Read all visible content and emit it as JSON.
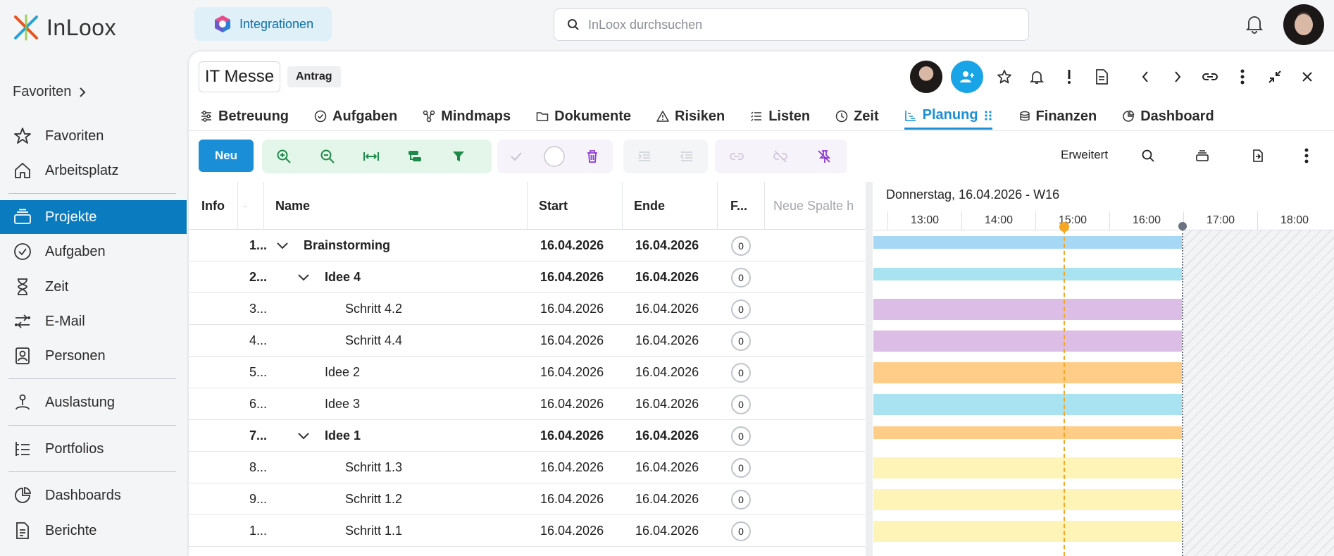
{
  "app": {
    "logo_text": "InLoox"
  },
  "sidebar": {
    "favorites_header": "Favoriten",
    "items": [
      {
        "label": "Favoriten",
        "icon": "star-icon"
      },
      {
        "label": "Arbeitsplatz",
        "icon": "home-icon"
      },
      {
        "label": "Projekte",
        "icon": "projects-icon"
      },
      {
        "label": "Aufgaben",
        "icon": "check-circle-icon"
      },
      {
        "label": "Zeit",
        "icon": "hourglass-icon"
      },
      {
        "label": "E-Mail",
        "icon": "email-icon"
      },
      {
        "label": "Personen",
        "icon": "contacts-icon"
      },
      {
        "label": "Auslastung",
        "icon": "workload-icon"
      },
      {
        "label": "Portfolios",
        "icon": "portfolio-icon"
      },
      {
        "label": "Dashboards",
        "icon": "pie-icon"
      },
      {
        "label": "Berichte",
        "icon": "report-icon"
      }
    ]
  },
  "topbar": {
    "integrations_label": "Integrationen",
    "search_placeholder": "InLoox durchsuchen"
  },
  "project": {
    "title": "IT Messe",
    "status": "Antrag"
  },
  "tabs": [
    {
      "label": "Betreuung"
    },
    {
      "label": "Aufgaben"
    },
    {
      "label": "Mindmaps"
    },
    {
      "label": "Dokumente"
    },
    {
      "label": "Risiken"
    },
    {
      "label": "Listen"
    },
    {
      "label": "Zeit"
    },
    {
      "label": "Planung"
    },
    {
      "label": "Finanzen"
    },
    {
      "label": "Dashboard"
    }
  ],
  "toolbar": {
    "new_label": "Neu",
    "advanced_label": "Erweitert"
  },
  "grid": {
    "columns": {
      "info": "Info",
      "num": "·",
      "name": "Name",
      "start": "Start",
      "end": "Ende",
      "f": "F...",
      "new_col": "Neue Spalte h"
    },
    "rows": [
      {
        "num": "1...",
        "name": "Brainstorming",
        "start": "16.04.2026",
        "end": "16.04.2026",
        "f": "0"
      },
      {
        "num": "2...",
        "name": "Idee 4",
        "start": "16.04.2026",
        "end": "16.04.2026",
        "f": "0"
      },
      {
        "num": "3...",
        "name": "Schritt 4.2",
        "start": "16.04.2026",
        "end": "16.04.2026",
        "f": "0"
      },
      {
        "num": "4...",
        "name": "Schritt 4.4",
        "start": "16.04.2026",
        "end": "16.04.2026",
        "f": "0"
      },
      {
        "num": "5...",
        "name": "Idee 2",
        "start": "16.04.2026",
        "end": "16.04.2026",
        "f": "0"
      },
      {
        "num": "6...",
        "name": "Idee 3",
        "start": "16.04.2026",
        "end": "16.04.2026",
        "f": "0"
      },
      {
        "num": "7...",
        "name": "Idee 1",
        "start": "16.04.2026",
        "end": "16.04.2026",
        "f": "0"
      },
      {
        "num": "8...",
        "name": "Schritt 1.3",
        "start": "16.04.2026",
        "end": "16.04.2026",
        "f": "0"
      },
      {
        "num": "9...",
        "name": "Schritt 1.2",
        "start": "16.04.2026",
        "end": "16.04.2026",
        "f": "0"
      },
      {
        "num": "1...",
        "name": "Schritt 1.1",
        "start": "16.04.2026",
        "end": "16.04.2026",
        "f": "0"
      }
    ]
  },
  "gantt": {
    "date_label": "Donnerstag, 16.04.2026 - W16",
    "hours": [
      "13:00",
      "14:00",
      "15:00",
      "16:00",
      "17:00",
      "18:00"
    ],
    "bar_colors": [
      "#a6d8f5",
      "#a9e2f0",
      "#dcbde6",
      "#dcbde6",
      "#ffcd87",
      "#a9e2f0",
      "#ffcd87",
      "#fff4b8",
      "#fff4b8",
      "#fff4b8"
    ],
    "accent": "#f5a623"
  }
}
